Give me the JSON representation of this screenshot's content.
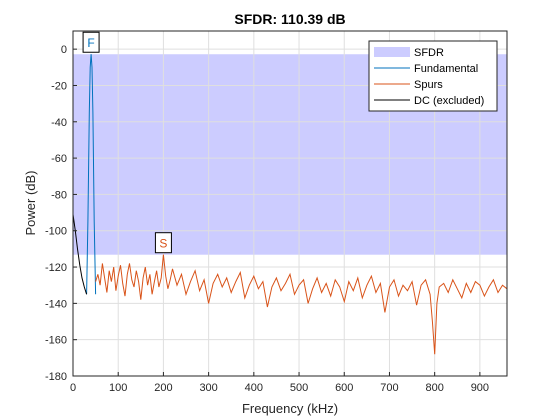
{
  "chart_data": {
    "type": "line",
    "title": "SFDR: 110.39 dB",
    "xlabel": "Frequency (kHz)",
    "ylabel": "Power (dB)",
    "xlim": [
      0,
      960
    ],
    "ylim": [
      -180,
      10
    ],
    "xticks": [
      0,
      100,
      200,
      300,
      400,
      500,
      600,
      700,
      800,
      900
    ],
    "yticks": [
      0,
      -20,
      -40,
      -60,
      -80,
      -100,
      -120,
      -140,
      -160,
      -180
    ],
    "grid": true,
    "legend_position": "top-right",
    "sfdr_band": {
      "name": "SFDR",
      "from": -113.2,
      "to": -2.8,
      "color": "#ccccff"
    },
    "series": [
      {
        "name": "Fundamental",
        "color": "#0072bd",
        "x": [
          30,
          33,
          36,
          38,
          40,
          42,
          44,
          47,
          50
        ],
        "y": [
          -135,
          -95,
          -35,
          -10,
          -2.8,
          -10,
          -35,
          -95,
          -135
        ]
      },
      {
        "name": "Spurs",
        "color": "#d95319",
        "x": [
          50,
          55,
          60,
          65,
          70,
          75,
          80,
          85,
          90,
          95,
          100,
          105,
          110,
          115,
          120,
          125,
          130,
          135,
          140,
          145,
          150,
          155,
          160,
          165,
          170,
          175,
          180,
          185,
          190,
          195,
          200,
          205,
          210,
          215,
          220,
          230,
          240,
          250,
          260,
          270,
          280,
          290,
          300,
          310,
          320,
          330,
          340,
          350,
          360,
          370,
          380,
          390,
          400,
          410,
          420,
          430,
          440,
          450,
          460,
          470,
          480,
          490,
          500,
          510,
          520,
          530,
          540,
          550,
          560,
          570,
          580,
          590,
          600,
          610,
          620,
          630,
          640,
          650,
          660,
          670,
          680,
          690,
          700,
          710,
          720,
          730,
          740,
          750,
          760,
          770,
          780,
          790,
          795,
          800,
          805,
          810,
          820,
          830,
          840,
          850,
          860,
          870,
          880,
          890,
          900,
          910,
          920,
          930,
          940,
          950,
          960
        ],
        "y": [
          -128,
          -124,
          -130,
          -118,
          -126,
          -134,
          -122,
          -128,
          -120,
          -133,
          -125,
          -119,
          -129,
          -136,
          -124,
          -118,
          -127,
          -131,
          -122,
          -128,
          -138,
          -126,
          -120,
          -130,
          -124,
          -135,
          -128,
          -122,
          -131,
          -126,
          -113.2,
          -125,
          -132,
          -127,
          -121,
          -130,
          -124,
          -135,
          -128,
          -122,
          -133,
          -127,
          -140,
          -129,
          -124,
          -131,
          -126,
          -134,
          -128,
          -123,
          -137,
          -130,
          -125,
          -132,
          -128,
          -142,
          -131,
          -126,
          -133,
          -129,
          -124,
          -135,
          -130,
          -127,
          -140,
          -132,
          -126,
          -134,
          -129,
          -136,
          -127,
          -131,
          -139,
          -128,
          -133,
          -126,
          -137,
          -130,
          -125,
          -134,
          -129,
          -145,
          -131,
          -127,
          -136,
          -130,
          -133,
          -128,
          -141,
          -130,
          -127,
          -135,
          -150,
          -168,
          -140,
          -131,
          -129,
          -134,
          -127,
          -132,
          -137,
          -129,
          -134,
          -128,
          -130,
          -136,
          -131,
          -127,
          -134,
          -130,
          -132
        ]
      },
      {
        "name": "DC (excluded)",
        "color": "#000000",
        "x": [
          0,
          5,
          10,
          15,
          20,
          25,
          30
        ],
        "y": [
          -91,
          -100,
          -110,
          -119,
          -126,
          -131,
          -135
        ]
      }
    ],
    "annotations": [
      {
        "label": "F",
        "x": 40,
        "y": -2.8,
        "color": "#0072bd"
      },
      {
        "label": "S",
        "x": 200,
        "y": -113.2,
        "color": "#d95319"
      }
    ]
  }
}
